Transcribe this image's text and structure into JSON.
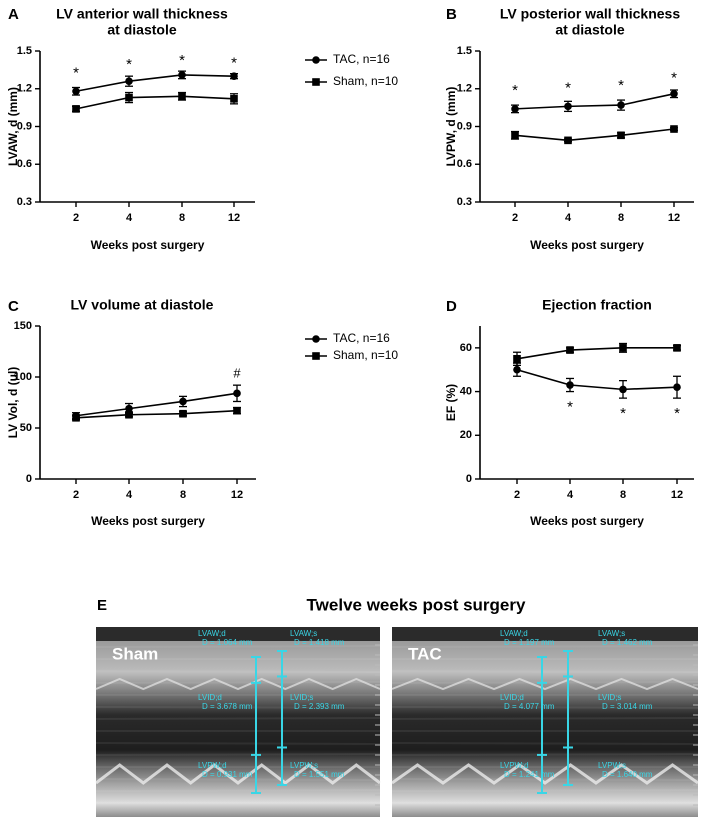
{
  "chart_data": [
    {
      "panel": "A",
      "type": "line",
      "title": "LV anterior wall thickness at diastole",
      "title_lines": [
        "LV anterior wall thickness",
        "at diastole"
      ],
      "xlabel": "Weeks post surgery",
      "ylabel": "LVAW, d (mm)",
      "categories": [
        "2",
        "4",
        "8",
        "12"
      ],
      "ylim": [
        0.3,
        1.5
      ],
      "yticks": [
        0.3,
        0.6,
        0.9,
        1.2,
        1.5
      ],
      "ytick_labels": [
        "0.3",
        "0.6",
        "0.9",
        "1.2",
        "1.5"
      ],
      "series": [
        {
          "name": "TAC, n=16",
          "marker": "circle",
          "values": [
            1.18,
            1.26,
            1.31,
            1.3
          ],
          "errors": [
            0.03,
            0.04,
            0.03,
            0.02
          ]
        },
        {
          "name": "Sham, n=10",
          "marker": "square",
          "values": [
            1.04,
            1.13,
            1.14,
            1.12
          ],
          "errors": [
            0.02,
            0.04,
            0.03,
            0.04
          ]
        }
      ],
      "annotations": [
        {
          "x": "2",
          "text": "*",
          "y": 1.36
        },
        {
          "x": "4",
          "text": "*",
          "y": 1.43
        },
        {
          "x": "8",
          "text": "*",
          "y": 1.46
        },
        {
          "x": "12",
          "text": "*",
          "y": 1.44
        }
      ],
      "legend": "right"
    },
    {
      "panel": "B",
      "type": "line",
      "title": "LV posterior wall thickness at diastole",
      "title_lines": [
        "LV posterior wall thickness",
        "at diastole"
      ],
      "xlabel": "Weeks post surgery",
      "ylabel": "LVPW, d (mm)",
      "categories": [
        "2",
        "4",
        "8",
        "12"
      ],
      "ylim": [
        0.3,
        1.5
      ],
      "yticks": [
        0.3,
        0.6,
        0.9,
        1.2,
        1.5
      ],
      "ytick_labels": [
        "0.3",
        "0.6",
        "0.9",
        "1.2",
        "1.5"
      ],
      "series": [
        {
          "name": "TAC, n=16",
          "marker": "circle",
          "values": [
            1.04,
            1.06,
            1.07,
            1.16
          ],
          "errors": [
            0.03,
            0.04,
            0.04,
            0.03
          ]
        },
        {
          "name": "Sham, n=10",
          "marker": "square",
          "values": [
            0.83,
            0.79,
            0.83,
            0.88
          ],
          "errors": [
            0.03,
            0.01,
            0.02,
            0.01
          ]
        }
      ],
      "annotations": [
        {
          "x": "2",
          "text": "*",
          "y": 1.22
        },
        {
          "x": "4",
          "text": "*",
          "y": 1.24
        },
        {
          "x": "8",
          "text": "*",
          "y": 1.26
        },
        {
          "x": "12",
          "text": "*",
          "y": 1.32
        }
      ]
    },
    {
      "panel": "C",
      "type": "line",
      "title": "LV volume at diastole",
      "title_lines": [
        "LV volume at diastole"
      ],
      "xlabel": "Weeks post surgery",
      "ylabel": "LV Vol, d (ul)",
      "categories": [
        "2",
        "4",
        "8",
        "12"
      ],
      "ylim": [
        0,
        150
      ],
      "yticks": [
        0,
        50,
        100,
        150
      ],
      "ytick_labels": [
        "0",
        "50",
        "100",
        "150"
      ],
      "series": [
        {
          "name": "TAC, n=16",
          "marker": "circle",
          "values": [
            62,
            69,
            76,
            84
          ],
          "errors": [
            3,
            5,
            5,
            8
          ]
        },
        {
          "name": "Sham, n=10",
          "marker": "square",
          "values": [
            60,
            63,
            64,
            67
          ],
          "errors": [
            2,
            2,
            2,
            3
          ]
        }
      ],
      "annotations": [
        {
          "x": "12",
          "text": "#",
          "y": 103
        }
      ],
      "legend": "right"
    },
    {
      "panel": "D",
      "type": "line",
      "title": "Ejection fraction",
      "title_lines": [
        "Ejection fraction"
      ],
      "xlabel": "Weeks post surgery",
      "ylabel": "EF (%)",
      "categories": [
        "2",
        "4",
        "8",
        "12"
      ],
      "ylim": [
        0,
        70
      ],
      "yticks": [
        0,
        20,
        40,
        60
      ],
      "ytick_labels": [
        "0",
        "20",
        "40",
        "60"
      ],
      "series": [
        {
          "name": "TAC, n=16",
          "marker": "circle",
          "values": [
            50,
            43,
            41,
            42
          ],
          "errors": [
            3,
            3,
            4,
            5
          ]
        },
        {
          "name": "Sham, n=10",
          "marker": "square",
          "values": [
            55,
            59,
            60,
            60
          ],
          "errors": [
            3,
            1,
            2,
            1
          ]
        }
      ],
      "annotations": [
        {
          "x": "4",
          "text": "*",
          "y": 35
        },
        {
          "x": "8",
          "text": "*",
          "y": 32
        },
        {
          "x": "12",
          "text": "*",
          "y": 32
        }
      ]
    }
  ],
  "legends": [
    {
      "items": [
        {
          "name": "TAC, n=16",
          "marker": "circle"
        },
        {
          "name": "Sham, n=10",
          "marker": "square"
        }
      ]
    },
    {
      "items": [
        {
          "name": "TAC, n=16",
          "marker": "circle"
        },
        {
          "name": "Sham, n=10",
          "marker": "square"
        }
      ]
    }
  ],
  "panel_e": {
    "letter": "E",
    "title": "Twelve weeks post surgery",
    "panels": [
      {
        "label": "Sham",
        "measurements": [
          [
            "LVAW;d",
            "D = 1.064 mm"
          ],
          [
            "LVAW;s",
            "D = 1.418 mm"
          ],
          [
            "LVID;d",
            "D = 3.678 mm"
          ],
          [
            "LVID;s",
            "D = 2.393 mm"
          ],
          [
            "LVPW;d",
            "D = 0.931 mm"
          ],
          [
            "LVPW;s",
            "D = 1.551 mm"
          ]
        ]
      },
      {
        "label": "TAC",
        "measurements": [
          [
            "LVAW;d",
            "D = 1.197 mm"
          ],
          [
            "LVAW;s",
            "D = 1.462 mm"
          ],
          [
            "LVID;d",
            "D = 4.077 mm"
          ],
          [
            "LVID;s",
            "D = 3.014 mm"
          ],
          [
            "LVPW;d",
            "D = 1.241 mm"
          ],
          [
            "LVPW;s",
            "D = 1.640 mm"
          ]
        ]
      }
    ],
    "colors": {
      "measure": "#39d6e6",
      "echo_bg": "#2b2b2b"
    }
  }
}
